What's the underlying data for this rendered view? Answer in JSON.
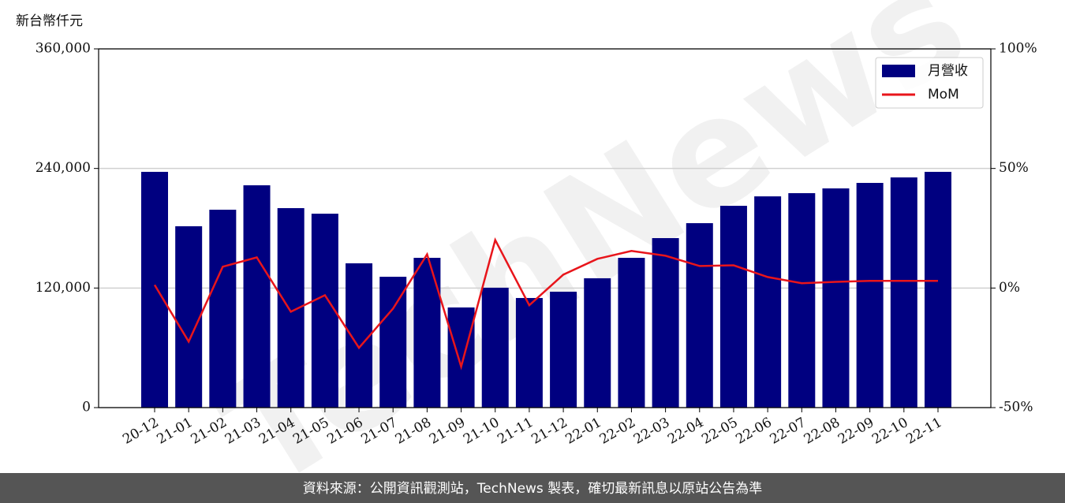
{
  "chart_data": {
    "type": "bar",
    "ylabel": "新台幣仟元",
    "watermark": "TechNews",
    "source": "資料來源：公開資訊觀測站，TechNews 製表，確切最新訊息以原站公告為準",
    "categories": [
      "20-12",
      "21-01",
      "21-02",
      "21-03",
      "21-04",
      "21-05",
      "21-06",
      "21-07",
      "21-08",
      "21-09",
      "21-10",
      "21-11",
      "21-12",
      "22-01",
      "22-02",
      "22-03",
      "22-04",
      "22-05",
      "22-06",
      "22-07",
      "22-08",
      "22-09",
      "22-10",
      "22-11"
    ],
    "series": [
      {
        "name": "月營收",
        "type": "bar",
        "color": "#000080",
        "values": [
          236600,
          182000,
          198600,
          223100,
          200200,
          194600,
          144800,
          131300,
          150300,
          100500,
          120300,
          110000,
          116300,
          129800,
          150300,
          170100,
          185100,
          202500,
          212000,
          215200,
          220000,
          225500,
          231000,
          236600
        ]
      },
      {
        "name": "MoM",
        "type": "line",
        "axis": "y2",
        "color": "#e8151b",
        "values": [
          1.3,
          -22.4,
          8.9,
          12.8,
          -9.9,
          -3.0,
          -25.0,
          -8.6,
          14.1,
          -32.9,
          20.1,
          -7.2,
          5.6,
          12.2,
          15.5,
          13.5,
          9.2,
          9.5,
          4.6,
          2.0,
          2.6,
          3.0,
          3.0,
          3.0
        ]
      }
    ],
    "ylim": [
      0,
      360000
    ],
    "yticks": [
      0,
      {
        "value": 120000,
        "label": "120,000"
      },
      {
        "value": 240000,
        "label": "240,000"
      },
      {
        "value": 360000,
        "label": "360,000"
      }
    ],
    "y2lim": [
      -50,
      100
    ],
    "y2ticks": [
      {
        "value": -50,
        "label": "-50%"
      },
      {
        "value": 0,
        "label": "0%"
      },
      {
        "value": 50,
        "label": "50%"
      },
      {
        "value": 100,
        "label": "100%"
      }
    ],
    "grid": true,
    "legend": "upper-right"
  }
}
